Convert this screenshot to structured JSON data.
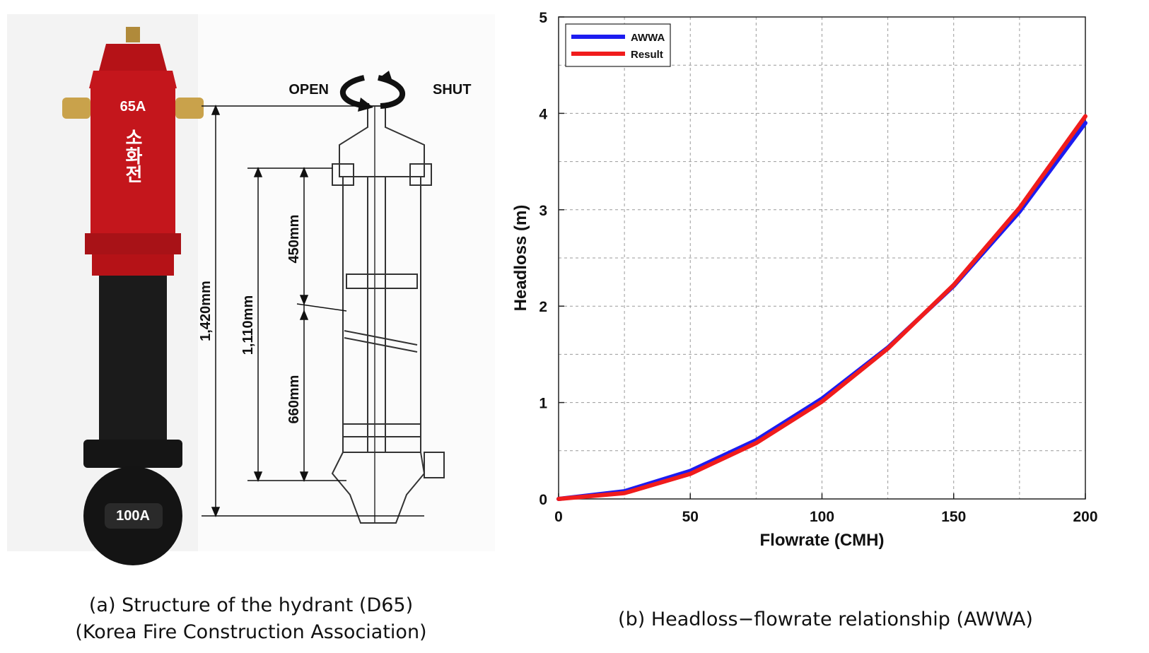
{
  "panel_a": {
    "open_label": "OPEN",
    "shut_label": "SHUT",
    "dim_total": "1,420mm",
    "dim_mid": "1,110mm",
    "dim_upper": "450mm",
    "dim_lower": "660mm",
    "hydrant_size_top": "65A",
    "hydrant_size_base": "100A",
    "hydrant_text": "소화전",
    "caption_line1": "(a)  Structure of the hydrant (D65)",
    "caption_line2": "(Korea Fire Construction Association)"
  },
  "panel_b": {
    "caption": "(b) Headloss−flowrate relationship (AWWA)"
  },
  "colors": {
    "awwa": "#1c1cf0",
    "result": "#f01c1c",
    "hydrant_red": "#c4161c",
    "hydrant_black": "#1b1b1b"
  },
  "chart_data": {
    "type": "line",
    "xlabel": "Flowrate (CMH)",
    "ylabel": "Headloss (m)",
    "xlim": [
      0,
      200
    ],
    "ylim": [
      0,
      5
    ],
    "xticks": [
      0,
      50,
      100,
      150,
      200
    ],
    "yticks": [
      0,
      1,
      2,
      3,
      4,
      5
    ],
    "grid": true,
    "legend_position": "top-left",
    "series": [
      {
        "name": "AWWA",
        "color": "#1c1cf0",
        "x": [
          0,
          25,
          50,
          75,
          100,
          125,
          150,
          175,
          200
        ],
        "y": [
          0,
          0.08,
          0.29,
          0.61,
          1.04,
          1.57,
          2.21,
          2.98,
          3.9
        ]
      },
      {
        "name": "Result",
        "color": "#f01c1c",
        "x": [
          0,
          25,
          50,
          75,
          100,
          125,
          150,
          175,
          200
        ],
        "y": [
          0,
          0.06,
          0.26,
          0.58,
          1.01,
          1.56,
          2.22,
          3.02,
          3.97
        ]
      }
    ]
  }
}
